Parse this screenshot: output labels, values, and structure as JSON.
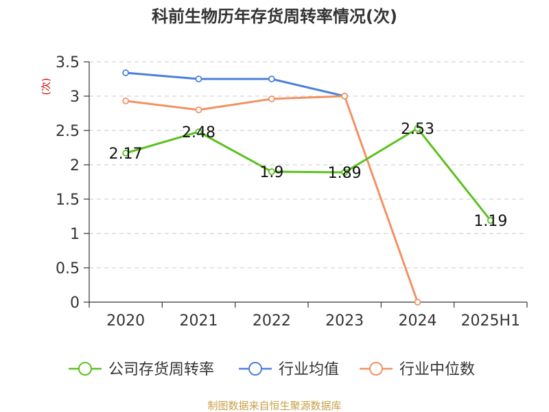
{
  "chart_data": {
    "type": "line",
    "title": "科前生物历年存货周转率情况(次)",
    "ylabel": "(次)",
    "xlabel": "",
    "categories": [
      "2020",
      "2021",
      "2022",
      "2023",
      "2024",
      "2025H1"
    ],
    "ylim": [
      0,
      3.5
    ],
    "yticks": [
      "0",
      "0.5",
      "1",
      "1.5",
      "2",
      "2.5",
      "3",
      "3.5"
    ],
    "grid": true,
    "legend_position": "bottom",
    "series": [
      {
        "name": "公司存货周转率",
        "color": "#5bc01f",
        "values": [
          2.17,
          2.48,
          1.9,
          1.89,
          2.53,
          1.19
        ],
        "labels": [
          "2.17",
          "2.48",
          "1.9",
          "1.89",
          "2.53",
          "1.19"
        ]
      },
      {
        "name": "行业均值",
        "color": "#4a7fdc",
        "values": [
          3.34,
          3.25,
          3.25,
          3.0,
          null,
          null
        ]
      },
      {
        "name": "行业中位数",
        "color": "#f39062",
        "values": [
          2.93,
          2.8,
          2.96,
          3.0,
          0,
          null
        ]
      }
    ],
    "source": "制图数据来自恒生聚源数据库"
  }
}
